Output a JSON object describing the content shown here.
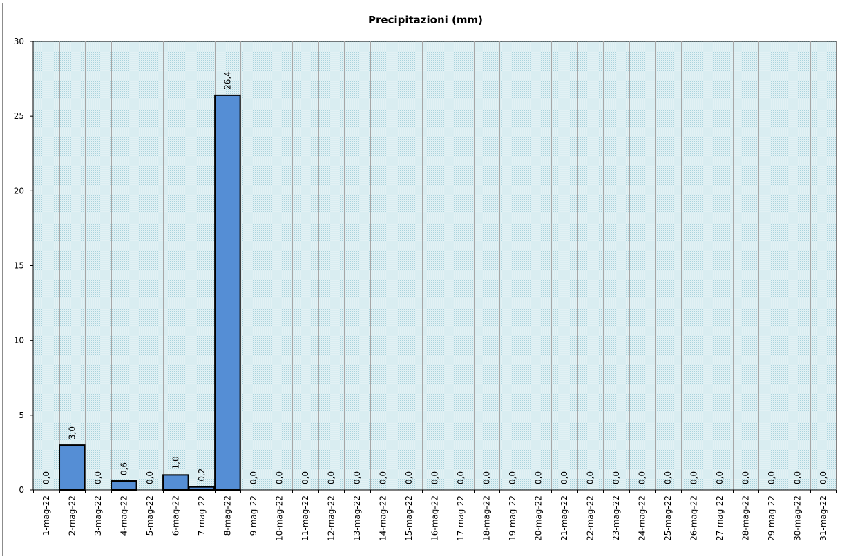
{
  "chart_data": {
    "type": "bar",
    "title": "Precipitazioni  (mm)",
    "xlabel": "",
    "ylabel": "",
    "ylim": [
      0,
      30
    ],
    "yticks": [
      0,
      5,
      10,
      15,
      20,
      25,
      30
    ],
    "grid": "vertical lines between categories",
    "legend": "none",
    "colors": {
      "bar": "#558ed5",
      "bar_border": "#000000",
      "plot_bg": "#daeef3",
      "grid": "#a6a6a6"
    },
    "categories": [
      "1-mag-22",
      "2-mag-22",
      "3-mag-22",
      "4-mag-22",
      "5-mag-22",
      "6-mag-22",
      "7-mag-22",
      "8-mag-22",
      "9-mag-22",
      "10-mag-22",
      "11-mag-22",
      "12-mag-22",
      "13-mag-22",
      "14-mag-22",
      "15-mag-22",
      "16-mag-22",
      "17-mag-22",
      "18-mag-22",
      "19-mag-22",
      "20-mag-22",
      "21-mag-22",
      "22-mag-22",
      "23-mag-22",
      "24-mag-22",
      "25-mag-22",
      "26-mag-22",
      "27-mag-22",
      "28-mag-22",
      "29-mag-22",
      "30-mag-22",
      "31-mag-22"
    ],
    "values": [
      0,
      3.0,
      0,
      0.6,
      0,
      1.0,
      0.2,
      26.4,
      0,
      0,
      0,
      0,
      0,
      0,
      0,
      0,
      0,
      0,
      0,
      0,
      0,
      0,
      0,
      0,
      0,
      0,
      0,
      0,
      0,
      0,
      0
    ],
    "data_labels": [
      "0,0",
      "3,0",
      "0,0",
      "0,6",
      "0,0",
      "1,0",
      "0,2",
      "26,4",
      "0,0",
      "0,0",
      "0,0",
      "0,0",
      "0,0",
      "0,0",
      "0,0",
      "0,0",
      "0,0",
      "0,0",
      "0,0",
      "0,0",
      "0,0",
      "0,0",
      "0,0",
      "0,0",
      "0,0",
      "0,0",
      "0,0",
      "0,0",
      "0,0",
      "0,0",
      "0,0"
    ]
  }
}
